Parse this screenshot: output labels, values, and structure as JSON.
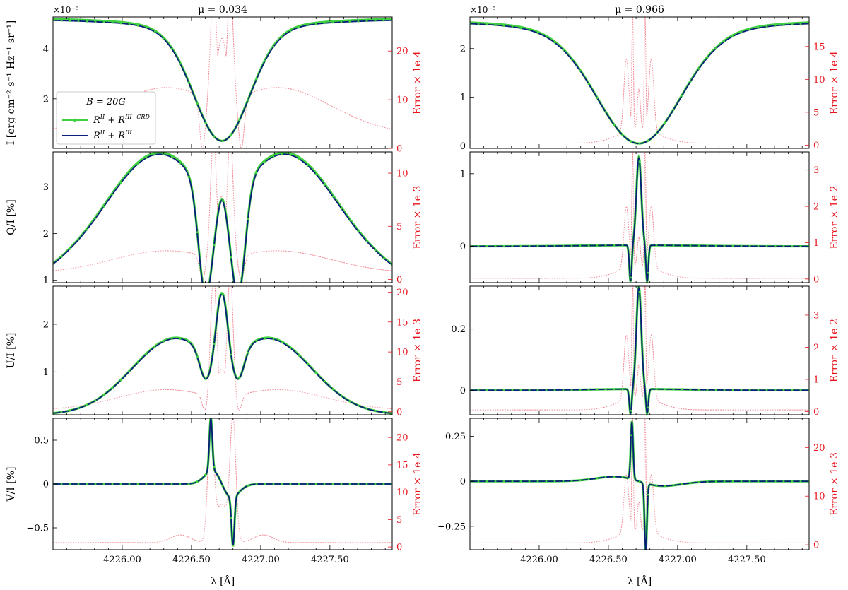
{
  "colors": {
    "main": "#0a1f7a",
    "alt": "#3fd13f",
    "error": "#f08a96",
    "right_axis": "#e8141c"
  },
  "columns": [
    {
      "title": "$\\mu = 0.034$",
      "title_text": "μ = 0.034"
    },
    {
      "title": "$\\mu = 0.966$",
      "title_text": "μ = 0.966"
    }
  ],
  "shared_x": {
    "label": "λ [Å]",
    "xlim": [
      4225.5,
      4227.95
    ],
    "ticks": [
      "4226.00",
      "4226.50",
      "4227.00",
      "4227.50"
    ]
  },
  "legend": {
    "title": "B = 20G",
    "entries": [
      {
        "label": "RII + RIII−CRD",
        "label_main": "R",
        "sup1": "II",
        "plus": " + R",
        "sup2": "III−CRD",
        "color_key": "alt"
      },
      {
        "label": "RII + RIII",
        "label_main": "R",
        "sup1": "II",
        "plus": " + R",
        "sup2": "III",
        "color_key": "main"
      }
    ]
  },
  "chart_data": [
    {
      "id": "I_mu0034",
      "type": "line",
      "row": 0,
      "col": 0,
      "ylabel": "I [erg cm⁻² s⁻¹ Hz⁻¹ sr⁻¹]",
      "multiplier": "×10⁻⁶",
      "ylim": [
        0,
        5.3
      ],
      "yticks": [
        2,
        4
      ],
      "ylabel_right": "Error × 1e-4",
      "ylim_right": [
        0,
        27
      ],
      "yticks_right": [
        0,
        10,
        20
      ],
      "profile": {
        "kind": "abs",
        "cont": 5.25,
        "core": 0.3,
        "width": 0.28,
        "shape": "intensity"
      },
      "error": {
        "kind": "wings_peaks",
        "wing": 12.5,
        "wing_w": 0.55,
        "dip_at": 0.14,
        "peak_at": 0.06,
        "peak": 24,
        "center": 14,
        "far": 3
      }
    },
    {
      "id": "I_mu0966",
      "type": "line",
      "row": 0,
      "col": 1,
      "multiplier": "×10⁻⁵",
      "ylim": [
        -0.05,
        2.65
      ],
      "yticks": [
        0,
        1,
        2
      ],
      "ylabel_right": "Error × 1e-4",
      "ylim_right": [
        -0.5,
        19.5
      ],
      "yticks_right": [
        0,
        5,
        10,
        15
      ],
      "profile": {
        "kind": "abs",
        "cont": 2.6,
        "core": 0.05,
        "width": 0.42,
        "shape": "intensity"
      },
      "error": {
        "kind": "core_peaks",
        "base": 0.3,
        "peak": 18,
        "side": 11,
        "center": 6
      }
    },
    {
      "id": "QI_mu0034",
      "type": "line",
      "row": 1,
      "col": 0,
      "ylabel": "Q/I [%]",
      "ylim": [
        0.95,
        3.75
      ],
      "yticks": [
        1,
        2,
        3
      ],
      "ylabel_right": "Error × 1e-3",
      "ylim_right": [
        -0.3,
        12
      ],
      "yticks_right": [
        0,
        5,
        10
      ],
      "profile": {
        "kind": "qi034"
      },
      "error": {
        "kind": "wings_peaks",
        "wing": 2.7,
        "wing_w": 0.55,
        "dip_at": 0.14,
        "peak_at": 0.06,
        "peak": 11.5,
        "center": 6,
        "far": 0.6
      }
    },
    {
      "id": "QI_mu0966",
      "type": "line",
      "row": 1,
      "col": 1,
      "ylim": [
        -0.5,
        1.3
      ],
      "yticks": [
        0,
        1
      ],
      "ylabel_right": "Error × 1e-2",
      "ylim_right": [
        -0.1,
        3.5
      ],
      "yticks_right": [
        0,
        1,
        2,
        3
      ],
      "profile": {
        "kind": "qi966"
      },
      "error": {
        "kind": "core_peaks",
        "base": 0.02,
        "peak": 3.3,
        "side": 1.7,
        "center": 0.8
      }
    },
    {
      "id": "UI_mu0034",
      "type": "line",
      "row": 2,
      "col": 0,
      "ylabel": "U/I [%]",
      "ylim": [
        0.1,
        2.8
      ],
      "yticks": [
        1,
        2
      ],
      "ylabel_right": "Error × 1e-3",
      "ylim_right": [
        -0.5,
        21
      ],
      "yticks_right": [
        0,
        5,
        10,
        15,
        20
      ],
      "profile": {
        "kind": "ui034"
      },
      "error": {
        "kind": "wings_peaks",
        "wing": 3.7,
        "wing_w": 0.5,
        "dip_at": 0.12,
        "peak_at": 0.06,
        "peak": 20.5,
        "center": 5,
        "far": 0.3
      }
    },
    {
      "id": "UI_mu0966",
      "type": "line",
      "row": 2,
      "col": 1,
      "ylim": [
        -0.08,
        0.34
      ],
      "yticks": [
        0,
        0.2
      ],
      "ylabel_right": "Error × 1e-2",
      "ylim_right": [
        -0.1,
        3.9
      ],
      "yticks_right": [
        0,
        1,
        2,
        3
      ],
      "profile": {
        "kind": "ui966"
      },
      "error": {
        "kind": "core_peaks",
        "base": 0.05,
        "peak": 3.8,
        "side": 2,
        "center": 1
      }
    },
    {
      "id": "VI_mu0034",
      "type": "line",
      "row": 3,
      "col": 0,
      "ylabel": "V/I [%]",
      "ylim": [
        -0.75,
        0.75
      ],
      "yticks": [
        -0.5,
        0,
        0.5
      ],
      "ylabel_right": "Error × 1e-4",
      "ylim_right": [
        -0.5,
        23.5
      ],
      "yticks_right": [
        0,
        5,
        10,
        15,
        20
      ],
      "profile": {
        "kind": "vi034"
      },
      "error": {
        "kind": "vi_err",
        "base": 0.8,
        "bump": 1.4,
        "peak": 22,
        "center": 7
      }
    },
    {
      "id": "VI_mu0966",
      "type": "line",
      "row": 3,
      "col": 1,
      "ylim": [
        -0.38,
        0.35
      ],
      "yticks": [
        -0.25,
        0,
        0.25
      ],
      "ylabel_right": "Error × 1e-3",
      "ylim_right": [
        -1,
        26
      ],
      "yticks_right": [
        0,
        10,
        20
      ],
      "profile": {
        "kind": "vi966"
      },
      "error": {
        "kind": "core_peaks",
        "base": 0.4,
        "peak": 24,
        "side": 12,
        "center": 6
      }
    }
  ]
}
